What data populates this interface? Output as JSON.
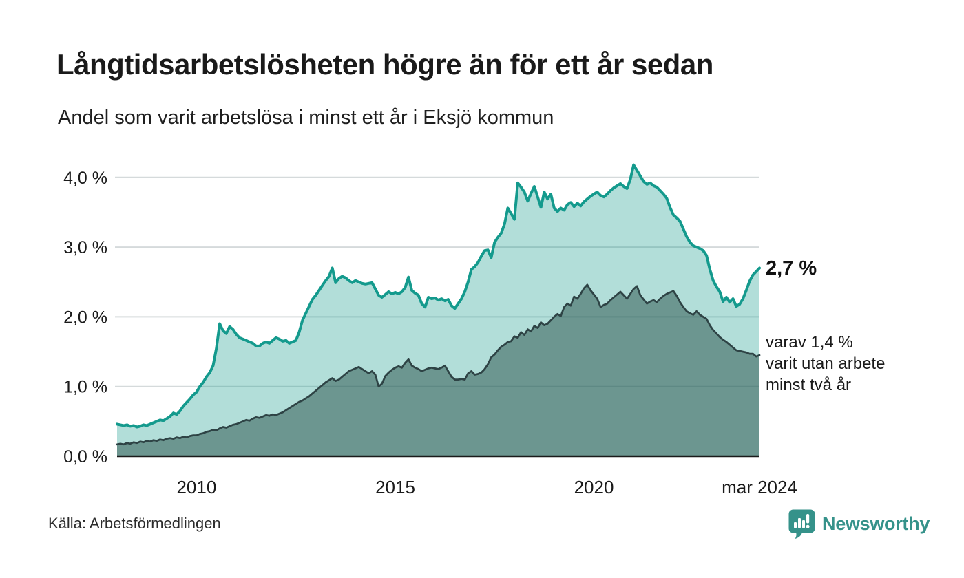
{
  "header": {
    "title": "Långtidsarbetslösheten högre än för ett år sedan",
    "subtitle": "Andel som varit arbetslösa i minst ett år i Eksjö kommun"
  },
  "annotations": {
    "latest_label": "2,7 %",
    "secondary_lines": [
      "varav 1,4 %",
      "varit utan arbete",
      "minst två år"
    ]
  },
  "footer": {
    "source": "Källa: Arbetsförmedlingen",
    "brand": "Newsworthy",
    "brand_color": "#35928a"
  },
  "chart_data": {
    "type": "area",
    "title": "Långtidsarbetslösheten högre än för ett år sedan",
    "subtitle": "Andel som varit arbetslösa i minst ett år i Eksjö kommun",
    "unit": "%",
    "x_start": "2008-01",
    "x_end": "2024-03",
    "x_frequency": "monthly",
    "ylim": [
      0,
      4.3
    ],
    "grid": true,
    "legend": "none",
    "colors": {
      "grid": "#d5dadb",
      "axis": "#1a1a1a",
      "tick_text": "#1a1a1a",
      "accent_teal": "#149a8d",
      "accent_dark": "#2e4345"
    },
    "y_ticks": [
      {
        "value": 0,
        "label": "0,0 %"
      },
      {
        "value": 1,
        "label": "1,0 %"
      },
      {
        "value": 2,
        "label": "2,0 %"
      },
      {
        "value": 3,
        "label": "3,0 %"
      },
      {
        "value": 4,
        "label": "4,0 %"
      }
    ],
    "x_ticks": [
      {
        "month_index": 24,
        "label": "2010"
      },
      {
        "month_index": 84,
        "label": "2015"
      },
      {
        "month_index": 144,
        "label": "2020"
      },
      {
        "month_index": 194,
        "label": "mar 2024"
      }
    ],
    "latest": {
      "date": "mar 2024",
      "at_least_one_year": 2.7,
      "at_least_two_years": 1.4
    },
    "series": [
      {
        "name": "Arbetslösa minst ett år",
        "color": "#149a8d",
        "fill": "rgba(21,154,139,0.33)",
        "stroke_width": 4,
        "values": [
          0.46,
          0.45,
          0.44,
          0.45,
          0.43,
          0.44,
          0.42,
          0.43,
          0.45,
          0.44,
          0.46,
          0.48,
          0.5,
          0.52,
          0.51,
          0.54,
          0.57,
          0.62,
          0.6,
          0.65,
          0.72,
          0.77,
          0.82,
          0.88,
          0.92,
          1.0,
          1.06,
          1.14,
          1.2,
          1.3,
          1.55,
          1.9,
          1.8,
          1.76,
          1.86,
          1.82,
          1.75,
          1.7,
          1.68,
          1.66,
          1.64,
          1.62,
          1.58,
          1.58,
          1.62,
          1.64,
          1.62,
          1.66,
          1.7,
          1.68,
          1.65,
          1.66,
          1.62,
          1.64,
          1.66,
          1.78,
          1.95,
          2.05,
          2.15,
          2.25,
          2.31,
          2.38,
          2.45,
          2.52,
          2.58,
          2.7,
          2.49,
          2.55,
          2.58,
          2.56,
          2.52,
          2.49,
          2.52,
          2.5,
          2.48,
          2.47,
          2.48,
          2.49,
          2.4,
          2.31,
          2.28,
          2.32,
          2.36,
          2.33,
          2.35,
          2.33,
          2.36,
          2.42,
          2.57,
          2.38,
          2.34,
          2.31,
          2.19,
          2.14,
          2.28,
          2.26,
          2.27,
          2.24,
          2.26,
          2.23,
          2.25,
          2.16,
          2.12,
          2.19,
          2.26,
          2.36,
          2.5,
          2.68,
          2.72,
          2.78,
          2.87,
          2.95,
          2.96,
          2.85,
          3.07,
          3.14,
          3.2,
          3.33,
          3.56,
          3.48,
          3.4,
          3.92,
          3.86,
          3.79,
          3.66,
          3.77,
          3.87,
          3.72,
          3.57,
          3.79,
          3.69,
          3.76,
          3.56,
          3.51,
          3.56,
          3.53,
          3.61,
          3.64,
          3.58,
          3.63,
          3.59,
          3.65,
          3.69,
          3.73,
          3.76,
          3.79,
          3.74,
          3.72,
          3.76,
          3.81,
          3.85,
          3.88,
          3.91,
          3.87,
          3.84,
          3.97,
          4.18,
          4.1,
          4.02,
          3.94,
          3.9,
          3.92,
          3.88,
          3.86,
          3.81,
          3.76,
          3.7,
          3.57,
          3.46,
          3.42,
          3.37,
          3.26,
          3.15,
          3.07,
          3.02,
          3.0,
          2.98,
          2.95,
          2.88,
          2.68,
          2.52,
          2.43,
          2.36,
          2.22,
          2.28,
          2.21,
          2.26,
          2.15,
          2.18,
          2.26,
          2.38,
          2.51,
          2.6,
          2.65,
          2.7
        ]
      },
      {
        "name": "Arbetslösa minst två år",
        "color": "#2e4345",
        "fill": "rgba(38,77,72,0.5)",
        "stroke_width": 2.75,
        "values": [
          0.17,
          0.18,
          0.17,
          0.19,
          0.18,
          0.2,
          0.19,
          0.21,
          0.2,
          0.22,
          0.21,
          0.23,
          0.22,
          0.24,
          0.23,
          0.25,
          0.26,
          0.25,
          0.27,
          0.26,
          0.28,
          0.27,
          0.29,
          0.3,
          0.3,
          0.32,
          0.33,
          0.35,
          0.36,
          0.38,
          0.37,
          0.4,
          0.42,
          0.41,
          0.43,
          0.45,
          0.46,
          0.48,
          0.5,
          0.52,
          0.51,
          0.54,
          0.56,
          0.55,
          0.57,
          0.59,
          0.58,
          0.6,
          0.59,
          0.61,
          0.63,
          0.66,
          0.69,
          0.72,
          0.75,
          0.78,
          0.8,
          0.83,
          0.86,
          0.9,
          0.94,
          0.98,
          1.02,
          1.06,
          1.09,
          1.12,
          1.08,
          1.1,
          1.14,
          1.18,
          1.22,
          1.24,
          1.26,
          1.28,
          1.25,
          1.22,
          1.19,
          1.22,
          1.17,
          1.0,
          1.04,
          1.15,
          1.2,
          1.24,
          1.27,
          1.29,
          1.27,
          1.34,
          1.39,
          1.3,
          1.27,
          1.25,
          1.22,
          1.24,
          1.26,
          1.27,
          1.26,
          1.25,
          1.27,
          1.3,
          1.22,
          1.14,
          1.1,
          1.1,
          1.11,
          1.1,
          1.19,
          1.22,
          1.17,
          1.18,
          1.2,
          1.25,
          1.32,
          1.42,
          1.46,
          1.52,
          1.57,
          1.6,
          1.64,
          1.65,
          1.72,
          1.7,
          1.78,
          1.74,
          1.82,
          1.79,
          1.87,
          1.84,
          1.92,
          1.88,
          1.9,
          1.95,
          2.0,
          2.04,
          2.01,
          2.14,
          2.19,
          2.16,
          2.29,
          2.26,
          2.33,
          2.41,
          2.46,
          2.38,
          2.32,
          2.26,
          2.14,
          2.17,
          2.19,
          2.24,
          2.28,
          2.32,
          2.36,
          2.31,
          2.26,
          2.33,
          2.4,
          2.44,
          2.31,
          2.25,
          2.19,
          2.22,
          2.24,
          2.21,
          2.26,
          2.3,
          2.33,
          2.35,
          2.37,
          2.3,
          2.21,
          2.14,
          2.08,
          2.05,
          2.03,
          2.08,
          2.03,
          2.0,
          1.97,
          1.88,
          1.81,
          1.76,
          1.71,
          1.67,
          1.64,
          1.6,
          1.56,
          1.52,
          1.51,
          1.5,
          1.49,
          1.47,
          1.47,
          1.43,
          1.45
        ]
      }
    ]
  }
}
